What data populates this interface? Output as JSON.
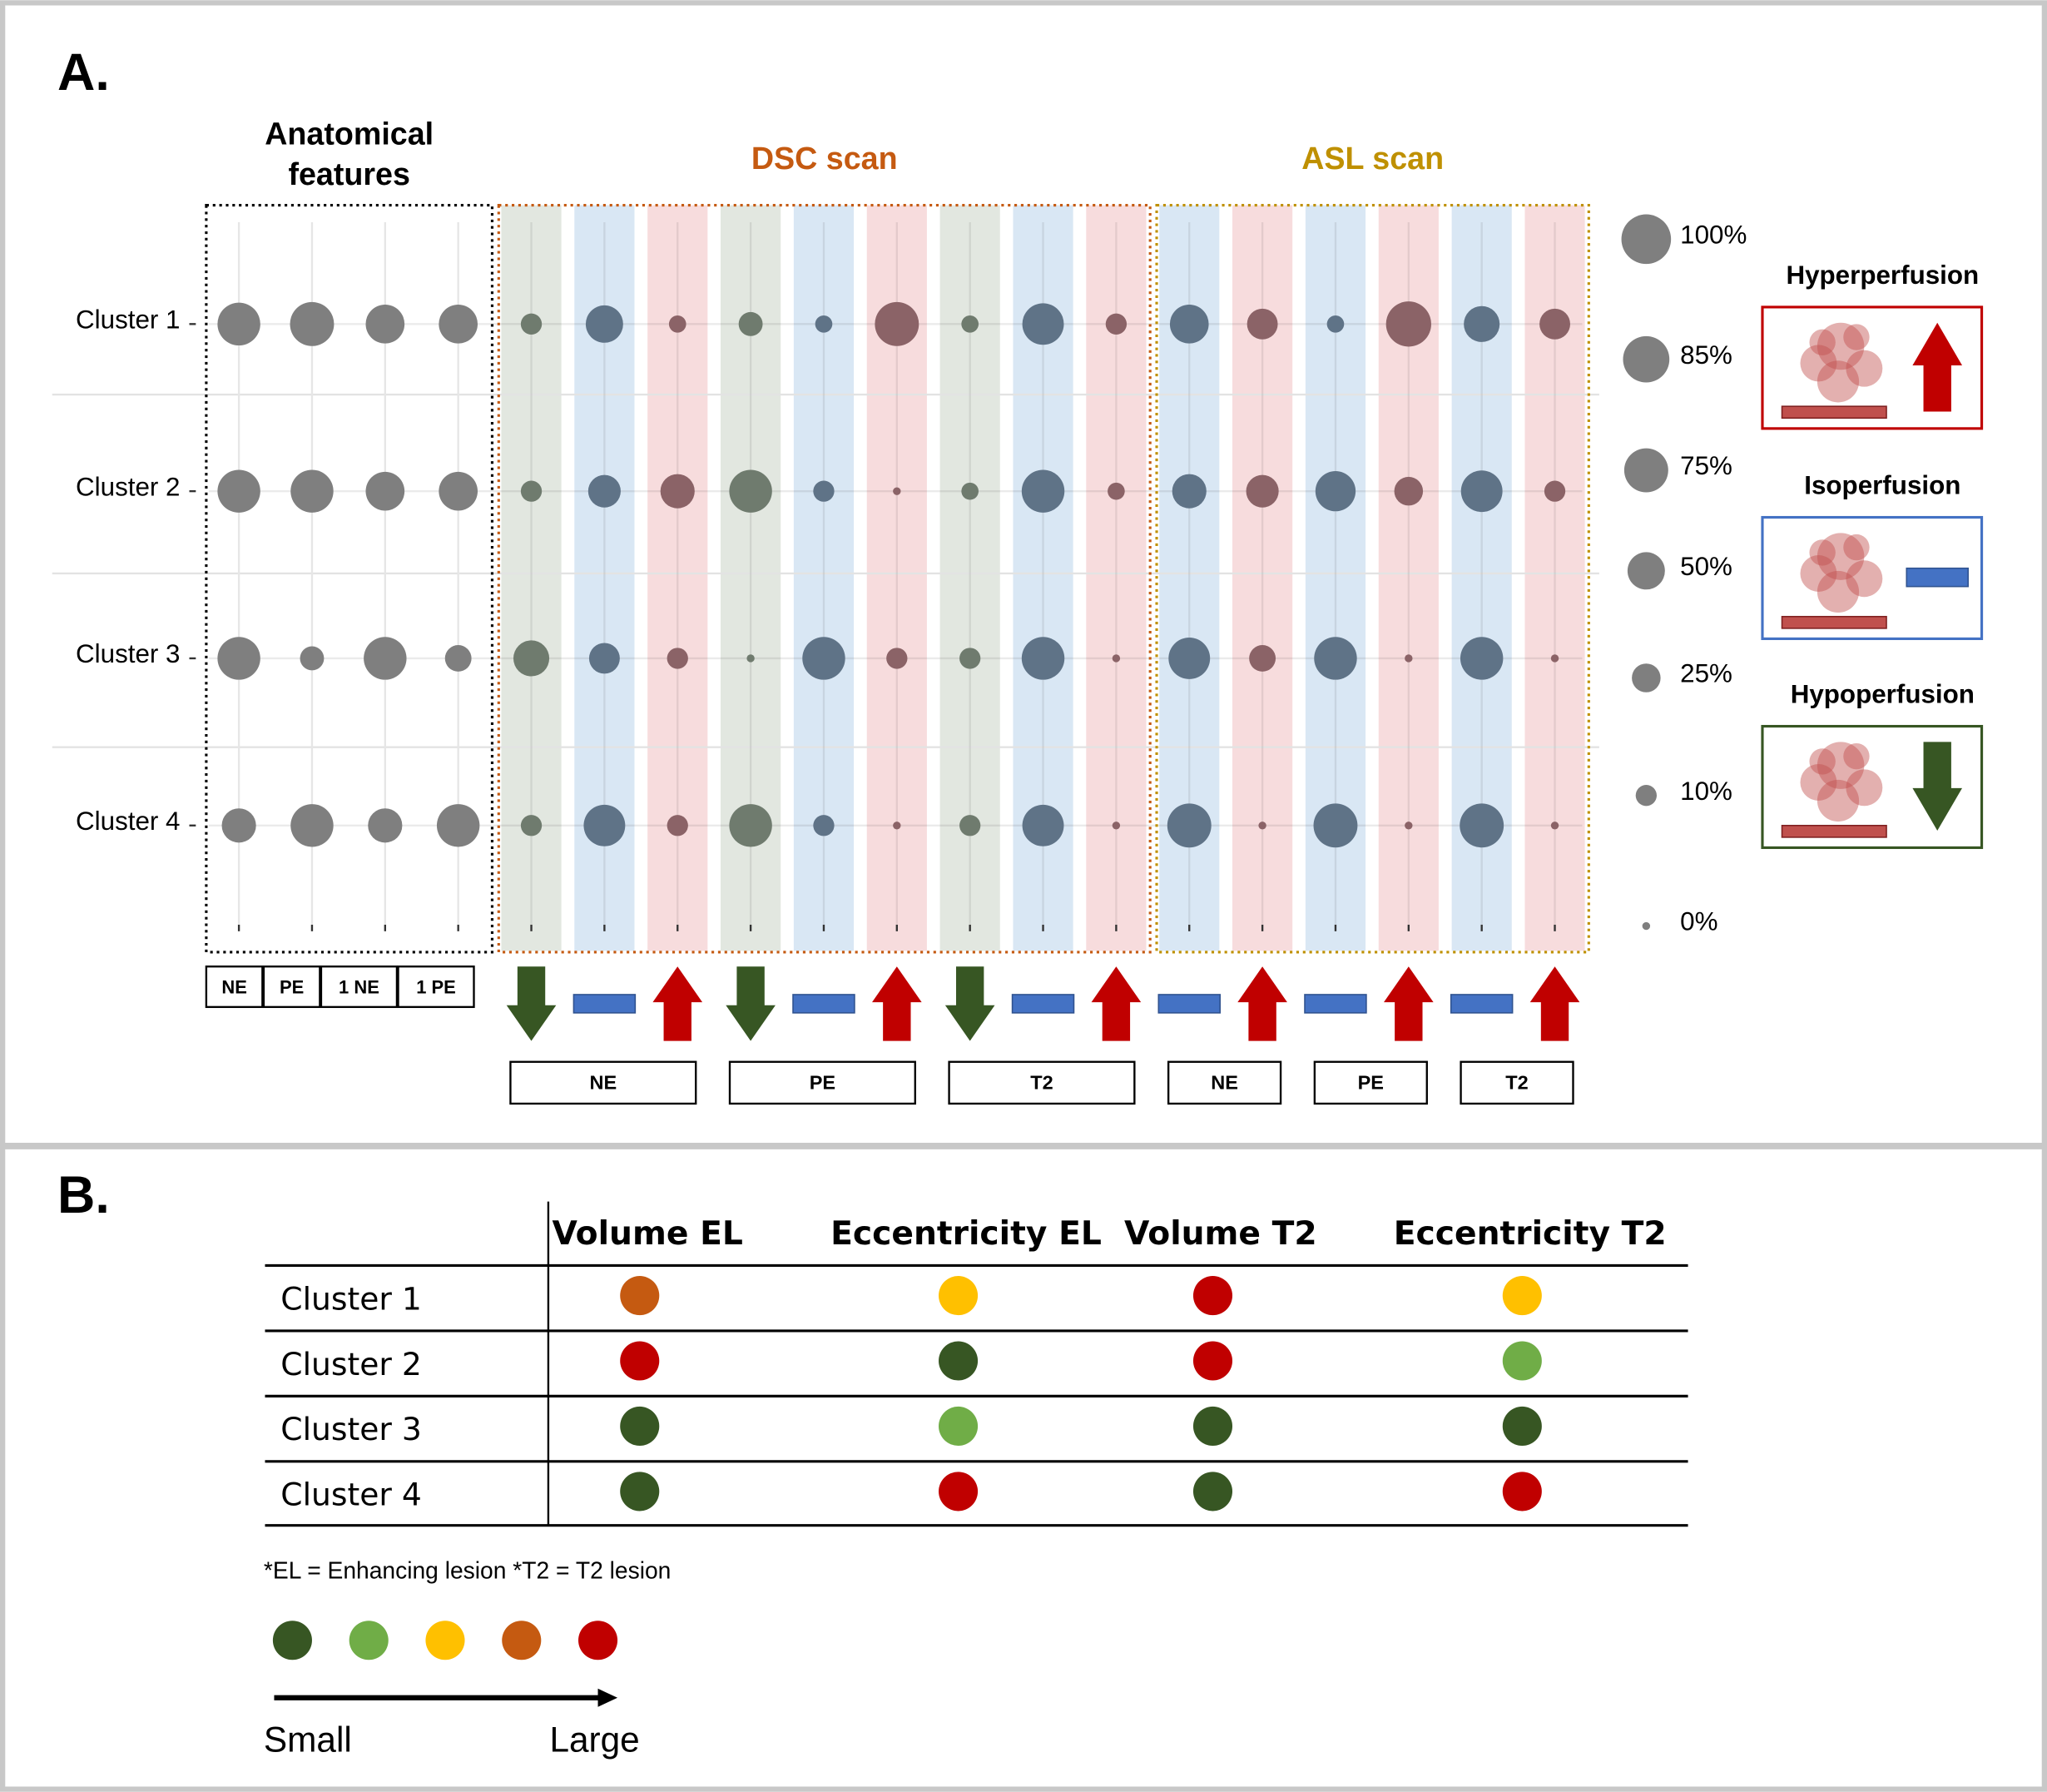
{
  "chart_data": [
    {
      "type": "bubble_matrix",
      "panel_label": "A.",
      "rows": [
        "Cluster 1",
        "Cluster 2",
        "Cluster 3",
        "Cluster 4"
      ],
      "groups": [
        {
          "title": [
            "Anatomical",
            "features"
          ],
          "color": "#000000",
          "columns": [
            "NE",
            "PE",
            "1 NE",
            "1 PE"
          ]
        },
        {
          "title": [
            "DSC scan"
          ],
          "color": "#c55a11",
          "subgroups": [
            {
              "label": "NE",
              "directions": [
                "down",
                "iso",
                "up"
              ]
            },
            {
              "label": "PE",
              "directions": [
                "down",
                "iso",
                "up"
              ]
            },
            {
              "label": "T2",
              "directions": [
                "down",
                "iso",
                "up"
              ]
            }
          ]
        },
        {
          "title": [
            "ASL scan"
          ],
          "color": "#bf9000",
          "subgroups": [
            {
              "label": "NE",
              "directions": [
                "iso",
                "up"
              ]
            },
            {
              "label": "PE",
              "directions": [
                "iso",
                "up"
              ]
            },
            {
              "label": "T2",
              "directions": [
                "iso",
                "up"
              ]
            }
          ]
        }
      ],
      "values": [
        [
          70,
          75,
          55,
          55,
          10,
          50,
          5,
          15,
          5,
          75,
          5,
          65,
          10,
          55,
          30,
          5,
          80,
          45,
          30
        ],
        [
          70,
          70,
          55,
          55,
          10,
          35,
          40,
          70,
          10,
          0,
          5,
          70,
          5,
          40,
          35,
          60,
          25,
          65,
          10
        ],
        [
          70,
          15,
          70,
          20,
          45,
          30,
          10,
          0,
          70,
          10,
          10,
          70,
          0,
          65,
          20,
          70,
          0,
          70,
          0
        ],
        [
          40,
          70,
          40,
          70,
          10,
          65,
          10,
          70,
          10,
          0,
          10,
          65,
          0,
          75,
          0,
          75,
          0,
          75,
          0
        ]
      ],
      "direction_colors": {
        "down": "#375623",
        "iso": "#4472c4",
        "up": "#c00000"
      },
      "size_legend": [
        {
          "value": 100,
          "label": "100%"
        },
        {
          "value": 85,
          "label": "85%"
        },
        {
          "value": 75,
          "label": "75%"
        },
        {
          "value": 50,
          "label": "50%"
        },
        {
          "value": 25,
          "label": "25%"
        },
        {
          "value": 10,
          "label": "10%"
        },
        {
          "value": 0,
          "label": "0%"
        }
      ],
      "perfusion_legend": [
        {
          "title": "Hyperperfusion",
          "direction": "up"
        },
        {
          "title": "Isoperfusion",
          "direction": "iso"
        },
        {
          "title": "Hypoperfusion",
          "direction": "down"
        }
      ]
    },
    {
      "type": "dot_table",
      "panel_label": "B.",
      "columns": [
        "Volume EL",
        "Eccentricity EL",
        "Volume T2",
        "Eccentricity T2"
      ],
      "rows": [
        "Cluster 1",
        "Cluster 2",
        "Cluster 3",
        "Cluster 4"
      ],
      "values": [
        [
          3,
          2,
          4,
          2
        ],
        [
          4,
          0,
          4,
          1
        ],
        [
          0,
          1,
          0,
          0
        ],
        [
          0,
          4,
          0,
          4
        ]
      ],
      "scale_colors": [
        "#375623",
        "#70ad47",
        "#ffc000",
        "#c55a11",
        "#c00000"
      ],
      "scale_labels": [
        "Small",
        "Large"
      ],
      "footnote": "*EL = Enhancing lesion *T2 = T2 lesion"
    }
  ]
}
